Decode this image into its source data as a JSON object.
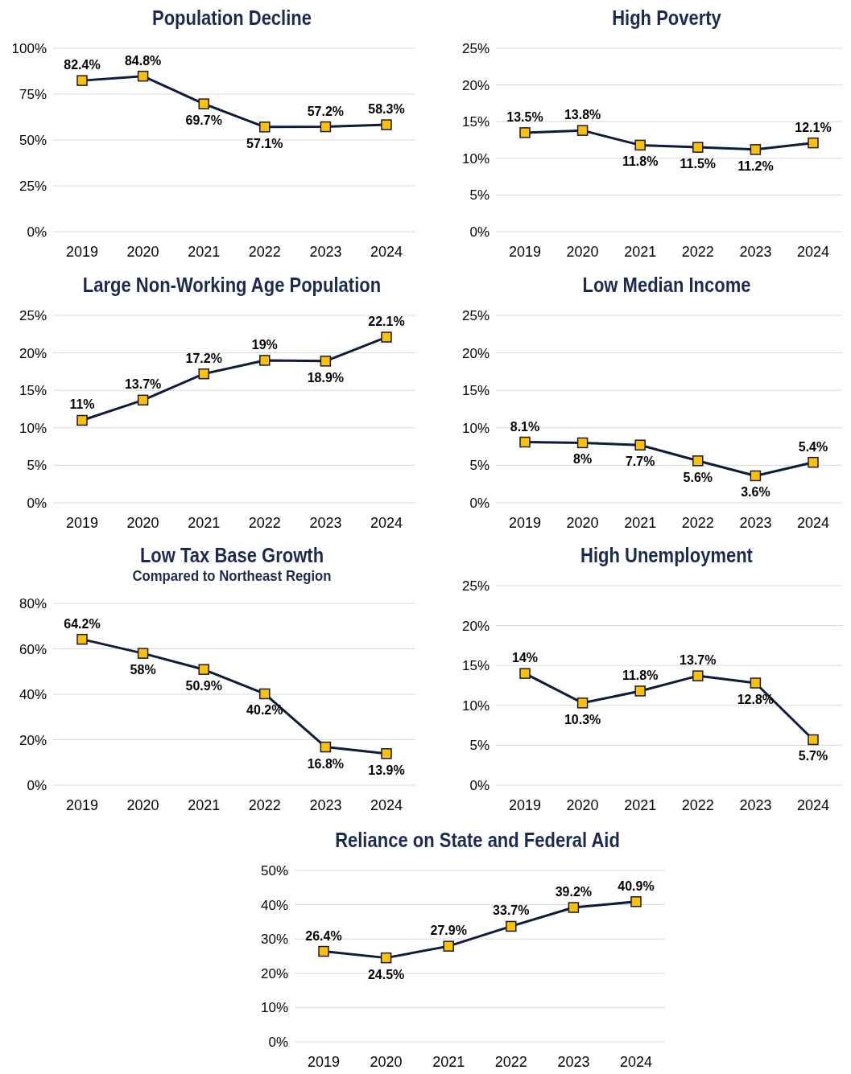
{
  "chart_data": [
    {
      "type": "line",
      "title": "Population Decline",
      "categories": [
        "2019",
        "2020",
        "2021",
        "2022",
        "2023",
        "2024"
      ],
      "values": [
        82.4,
        84.8,
        69.7,
        57.1,
        57.2,
        58.3
      ],
      "value_labels": [
        "82.4%",
        "84.8%",
        "69.7%",
        "57.1%",
        "57.2%",
        "58.3%"
      ],
      "color": "#0f1b3d",
      "colors": [
        "#ffc000",
        "#ffc000",
        "#ffc000",
        "#ffc000",
        "#ffc000",
        "#ffc000"
      ],
      "ylim": [
        0,
        100
      ],
      "yticks": [
        {
          "value": 0,
          "label": "0%"
        },
        {
          "value": 25,
          "label": "25%"
        },
        {
          "value": 50,
          "label": "50%"
        },
        {
          "value": 75,
          "label": "75%"
        },
        {
          "value": 100,
          "label": "100%"
        }
      ],
      "grid": "y",
      "marker": "square",
      "line_style": "solid"
    },
    {
      "type": "line",
      "title": "High Poverty",
      "categories": [
        "2019",
        "2020",
        "2021",
        "2022",
        "2023",
        "2024"
      ],
      "values": [
        13.5,
        13.8,
        11.8,
        11.5,
        11.2,
        12.1
      ],
      "value_labels": [
        "13.5%",
        "13.8%",
        "11.8%",
        "11.5%",
        "11.2%",
        "12.1%"
      ],
      "color": "#0f1b3d",
      "colors": [
        "#ffc000",
        "#ffc000",
        "#ffc000",
        "#ffc000",
        "#ffc000",
        "#ffc000"
      ],
      "ylim": [
        0,
        25
      ],
      "yticks": [
        {
          "value": 0,
          "label": "0%"
        },
        {
          "value": 5,
          "label": "5%"
        },
        {
          "value": 10,
          "label": "10%"
        },
        {
          "value": 15,
          "label": "15%"
        },
        {
          "value": 20,
          "label": "20%"
        },
        {
          "value": 25,
          "label": "25%"
        }
      ],
      "grid": "y",
      "marker": "square",
      "line_style": "solid"
    },
    {
      "type": "line",
      "title": "Large Non-Working Age Population",
      "categories": [
        "2019",
        "2020",
        "2021",
        "2022",
        "2023",
        "2024"
      ],
      "values": [
        11,
        13.7,
        17.2,
        19,
        18.9,
        22.1
      ],
      "value_labels": [
        "11%",
        "13.7%",
        "17.2%",
        "19%",
        "18.9%",
        "22.1%"
      ],
      "color": "#0f1b3d",
      "colors": [
        "#ffc000",
        "#ffc000",
        "#ffc000",
        "#ffc000",
        "#ffc000",
        "#ffc000"
      ],
      "ylim": [
        0,
        25
      ],
      "yticks": [
        {
          "value": 0,
          "label": "0%"
        },
        {
          "value": 5,
          "label": "5%"
        },
        {
          "value": 10,
          "label": "10%"
        },
        {
          "value": 15,
          "label": "15%"
        },
        {
          "value": 20,
          "label": "20%"
        },
        {
          "value": 25,
          "label": "25%"
        }
      ],
      "grid": "y",
      "marker": "square",
      "line_style": "solid"
    },
    {
      "type": "line",
      "title": "Low Median Income",
      "categories": [
        "2019",
        "2020",
        "2021",
        "2022",
        "2023",
        "2024"
      ],
      "values": [
        8.1,
        8,
        7.7,
        5.6,
        3.6,
        5.4
      ],
      "value_labels": [
        "8.1%",
        "8%",
        "7.7%",
        "5.6%",
        "3.6%",
        "5.4%"
      ],
      "color": "#0f1b3d",
      "colors": [
        "#ffc000",
        "#ffc000",
        "#ffc000",
        "#ffc000",
        "#ffc000",
        "#ffc000"
      ],
      "ylim": [
        0,
        25
      ],
      "yticks": [
        {
          "value": 0,
          "label": "0%"
        },
        {
          "value": 5,
          "label": "5%"
        },
        {
          "value": 10,
          "label": "10%"
        },
        {
          "value": 15,
          "label": "15%"
        },
        {
          "value": 20,
          "label": "20%"
        },
        {
          "value": 25,
          "label": "25%"
        }
      ],
      "grid": "y",
      "marker": "square",
      "line_style": "solid"
    },
    {
      "type": "line",
      "title": "Low Tax Base Growth",
      "subtitle": "Compared to Northeast Region",
      "categories": [
        "2019",
        "2020",
        "2021",
        "2022",
        "2023",
        "2024"
      ],
      "values": [
        64.2,
        58,
        50.9,
        40.2,
        16.8,
        13.9
      ],
      "value_labels": [
        "64.2%",
        "58%",
        "50.9%",
        "40.2%",
        "16.8%",
        "13.9%"
      ],
      "color": "#0f1b3d",
      "colors": [
        "#ffc000",
        "#ffc000",
        "#ffc000",
        "#ffc000",
        "#ffc000",
        "#ffc000"
      ],
      "ylim": [
        0,
        80
      ],
      "yticks": [
        {
          "value": 0,
          "label": "0%"
        },
        {
          "value": 20,
          "label": "20%"
        },
        {
          "value": 40,
          "label": "40%"
        },
        {
          "value": 60,
          "label": "60%"
        },
        {
          "value": 80,
          "label": "80%"
        }
      ],
      "grid": "y",
      "marker": "square",
      "line_style": "solid"
    },
    {
      "type": "line",
      "title": "High Unemployment",
      "categories": [
        "2019",
        "2020",
        "2021",
        "2022",
        "2023",
        "2024"
      ],
      "values": [
        14,
        10.3,
        11.8,
        13.7,
        12.8,
        5.7
      ],
      "value_labels": [
        "14%",
        "10.3%",
        "11.8%",
        "13.7%",
        "12.8%",
        "5.7%"
      ],
      "color": "#0f1b3d",
      "colors": [
        "#ffc000",
        "#ffc000",
        "#ffc000",
        "#ffc000",
        "#ffc000",
        "#ffc000"
      ],
      "ylim": [
        0,
        25
      ],
      "yticks": [
        {
          "value": 0,
          "label": "0%"
        },
        {
          "value": 5,
          "label": "5%"
        },
        {
          "value": 10,
          "label": "10%"
        },
        {
          "value": 15,
          "label": "15%"
        },
        {
          "value": 20,
          "label": "20%"
        },
        {
          "value": 25,
          "label": "25%"
        }
      ],
      "grid": "y",
      "marker": "square",
      "line_style": "solid"
    },
    {
      "type": "line",
      "title": "Reliance on State and Federal Aid",
      "categories": [
        "2019",
        "2020",
        "2021",
        "2022",
        "2023",
        "2024"
      ],
      "values": [
        26.4,
        24.5,
        27.9,
        33.7,
        39.2,
        40.9
      ],
      "value_labels": [
        "26.4%",
        "24.5%",
        "27.9%",
        "33.7%",
        "39.2%",
        "40.9%"
      ],
      "color": "#0f1b3d",
      "colors": [
        "#ffc000",
        "#ffc000",
        "#ffc000",
        "#ffc000",
        "#ffc000",
        "#ffc000"
      ],
      "ylim": [
        0,
        50
      ],
      "yticks": [
        {
          "value": 0,
          "label": "0%"
        },
        {
          "value": 10,
          "label": "10%"
        },
        {
          "value": 20,
          "label": "20%"
        },
        {
          "value": 30,
          "label": "30%"
        },
        {
          "value": 40,
          "label": "40%"
        },
        {
          "value": 50,
          "label": "50%"
        }
      ],
      "grid": "y",
      "marker": "square",
      "line_style": "solid"
    }
  ]
}
